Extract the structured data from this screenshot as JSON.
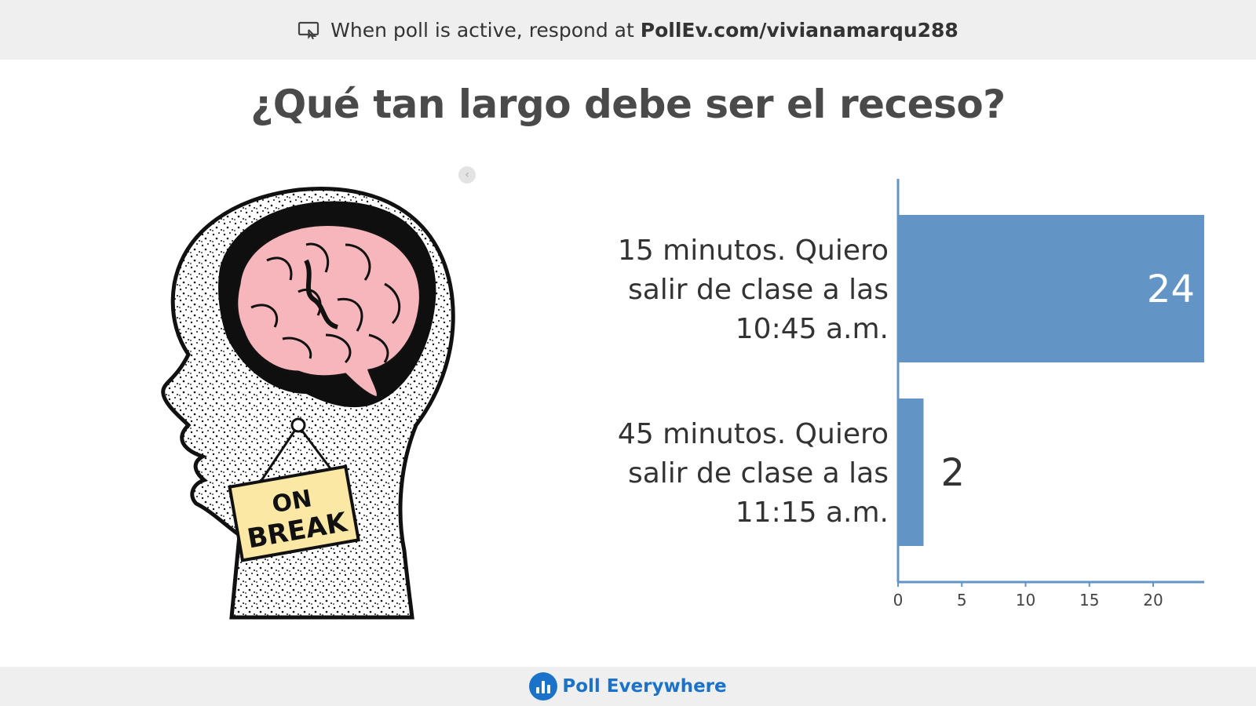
{
  "header": {
    "prefix": "When poll is active, respond at",
    "url": "PollEv.com/vivianamarqu288"
  },
  "question": {
    "title": "¿Qué tan largo debe ser el receso?"
  },
  "image": {
    "sign_line1": "ON",
    "sign_line2": "BREAK"
  },
  "footer": {
    "brand": "Poll Everywhere"
  },
  "colors": {
    "bar": "#6394c6",
    "brand": "#1a73c9",
    "bar_bg": "#efefef"
  },
  "chart_data": {
    "type": "bar",
    "orientation": "horizontal",
    "categories": [
      [
        "15 minutos. Quiero",
        "salir de clase a las",
        "10:45 a.m."
      ],
      [
        "45 minutos. Quiero",
        "salir de clase a las",
        "11:15 a.m."
      ]
    ],
    "values": [
      24,
      2
    ],
    "xticks": [
      0,
      5,
      10,
      15,
      20
    ],
    "xlim": [
      0,
      24
    ],
    "grid": false,
    "legend": "none"
  }
}
